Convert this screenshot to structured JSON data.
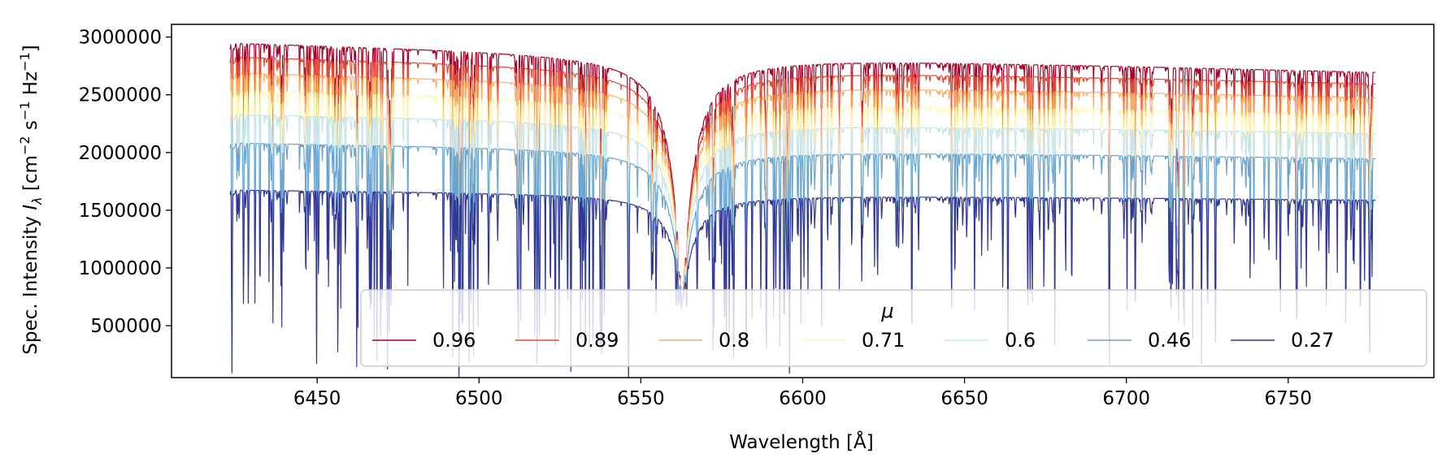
{
  "chart_data": {
    "type": "line",
    "xlabel": "Wavelength [Å]",
    "ylabel": {
      "prefix": "Spec. Intensity ",
      "symbol": "I",
      "subscript": "λ",
      "unit_open": " [cm",
      "exp1": "−2",
      "s_part": " s",
      "exp2": "−1",
      "hz_part": " Hz",
      "exp3": "−1",
      "unit_close": "]"
    },
    "xlim": [
      6405,
      6795
    ],
    "ylim": [
      50000,
      3110000
    ],
    "x_ticks": [
      6450,
      6500,
      6550,
      6600,
      6650,
      6700,
      6750
    ],
    "y_ticks": [
      500000,
      1000000,
      1500000,
      2000000,
      2500000,
      3000000
    ],
    "x_tick_labels": [
      "6450",
      "6500",
      "6550",
      "6600",
      "6650",
      "6700",
      "6750"
    ],
    "y_tick_labels": [
      "500000",
      "1000000",
      "1500000",
      "2000000",
      "2500000",
      "3000000"
    ],
    "legend": {
      "title": "μ",
      "placement": "lower right",
      "columns": 7
    },
    "x_range_data": [
      6423,
      6777
    ],
    "line_center": 6562.8,
    "line_core_value": 720000,
    "series": [
      {
        "name": "0.96",
        "color": "#a50026",
        "continuum_blue": 2960000,
        "continuum_red": 2700000
      },
      {
        "name": "0.89",
        "color": "#e34a33",
        "continuum_blue": 2840000,
        "continuum_red": 2600000
      },
      {
        "name": "0.8",
        "color": "#fdae61",
        "continuum_blue": 2700000,
        "continuum_red": 2480000
      },
      {
        "name": "0.71",
        "color": "#fff7b8",
        "continuum_blue": 2550000,
        "continuum_red": 2330000
      },
      {
        "name": "0.6",
        "color": "#c6e3ec",
        "continuum_blue": 2340000,
        "continuum_red": 2170000
      },
      {
        "name": "0.46",
        "color": "#6aa3cf",
        "continuum_blue": 2090000,
        "continuum_red": 1950000
      },
      {
        "name": "0.27",
        "color": "#313695",
        "continuum_blue": 1680000,
        "continuum_red": 1590000
      }
    ]
  }
}
